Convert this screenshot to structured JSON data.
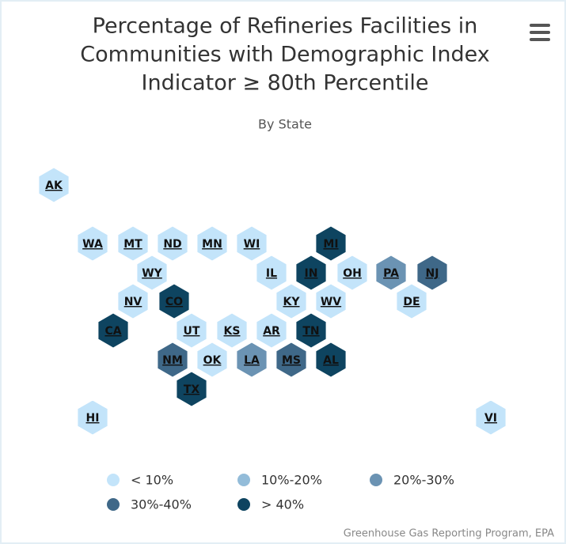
{
  "chart_data": {
    "type": "tilemap",
    "title": [
      "Percentage of Refineries Facilities in",
      "Communities with Demographic Index",
      "Indicator ≥ 80th Percentile"
    ],
    "subtitle": "By State",
    "credits": "Greenhouse Gas Reporting Program, EPA",
    "legend": [
      {
        "name": "< 10%",
        "color": "#c3e4fa"
      },
      {
        "name": "10%-20%",
        "color": "#93bcd9"
      },
      {
        "name": "20%-30%",
        "color": "#6b93b3"
      },
      {
        "name": "30%-40%",
        "color": "#3f6888"
      },
      {
        "name": "> 40%",
        "color": "#0e4460"
      }
    ],
    "states": [
      {
        "label": "AK",
        "color": "#c3e4fa"
      },
      {
        "label": "WA",
        "color": "#c3e4fa"
      },
      {
        "label": "MT",
        "color": "#c3e4fa"
      },
      {
        "label": "ND",
        "color": "#c3e4fa"
      },
      {
        "label": "MN",
        "color": "#c3e4fa"
      },
      {
        "label": "WI",
        "color": "#c3e4fa"
      },
      {
        "label": "MI",
        "color": "#0e4460"
      },
      {
        "label": "WY",
        "color": "#c3e4fa"
      },
      {
        "label": "IL",
        "color": "#c3e4fa"
      },
      {
        "label": "IN",
        "color": "#0e4460"
      },
      {
        "label": "OH",
        "color": "#c3e4fa"
      },
      {
        "label": "PA",
        "color": "#6b93b3"
      },
      {
        "label": "NJ",
        "color": "#3f6888"
      },
      {
        "label": "NV",
        "color": "#c3e4fa"
      },
      {
        "label": "CO",
        "color": "#0e4460"
      },
      {
        "label": "KY",
        "color": "#c3e4fa"
      },
      {
        "label": "WV",
        "color": "#c3e4fa"
      },
      {
        "label": "DE",
        "color": "#c3e4fa"
      },
      {
        "label": "CA",
        "color": "#0e4460"
      },
      {
        "label": "UT",
        "color": "#c3e4fa"
      },
      {
        "label": "KS",
        "color": "#c3e4fa"
      },
      {
        "label": "AR",
        "color": "#c3e4fa"
      },
      {
        "label": "TN",
        "color": "#0e4460"
      },
      {
        "label": "NM",
        "color": "#3f6888"
      },
      {
        "label": "OK",
        "color": "#c3e4fa"
      },
      {
        "label": "LA",
        "color": "#6b93b3"
      },
      {
        "label": "MS",
        "color": "#3f6888"
      },
      {
        "label": "AL",
        "color": "#0e4460"
      },
      {
        "label": "TX",
        "color": "#0e4460"
      },
      {
        "label": "HI",
        "color": "#c3e4fa"
      },
      {
        "label": "VI",
        "color": "#c3e4fa"
      }
    ]
  }
}
